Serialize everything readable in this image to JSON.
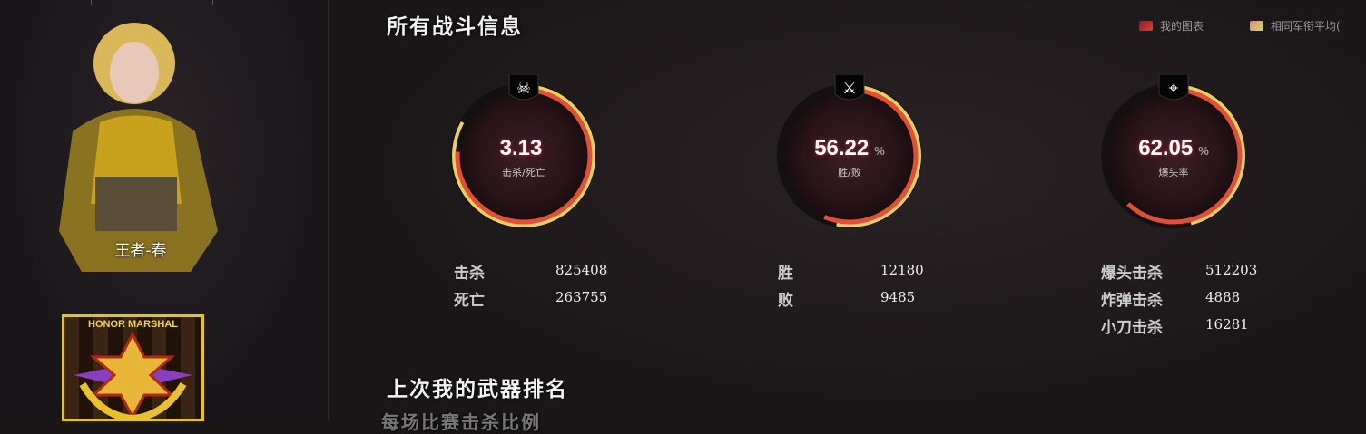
{
  "player": {
    "name": "王者-春",
    "rank_badge": "HONOR MARSHAL"
  },
  "sections": {
    "all_battle_info": "所有战斗信息",
    "last_weapon_rank": "上次我的武器排名",
    "per_match_kill_ratio": "每场比赛击杀比例"
  },
  "legend": [
    {
      "label": "我的图表",
      "color": "#c0283a"
    },
    {
      "label": "相同军衔平均(",
      "color": "#e8d060"
    }
  ],
  "gauges": [
    {
      "icon": "skull-crossbones-icon",
      "value": "3.13",
      "unit": "",
      "label": "击杀/死亡",
      "my_fraction": 0.76,
      "avg_fraction": 0.83
    },
    {
      "icon": "crossed-rifles-icon",
      "value": "56.22",
      "unit": "%",
      "label": "胜/败",
      "my_fraction": 0.5622,
      "avg_fraction": 0.53
    },
    {
      "icon": "sniper-crosshair-icon",
      "value": "62.05",
      "unit": "%",
      "label": "爆头率",
      "my_fraction": 0.6205,
      "avg_fraction": 0.46
    }
  ],
  "stats": [
    [
      {
        "label": "击杀",
        "value": "825408"
      },
      {
        "label": "死亡",
        "value": "263755"
      }
    ],
    [
      {
        "label": "胜",
        "value": "12180"
      },
      {
        "label": "败",
        "value": "9485"
      }
    ],
    [
      {
        "label": "爆头击杀",
        "value": "512203"
      },
      {
        "label": "炸弹击杀",
        "value": "4888"
      },
      {
        "label": "小刀击杀",
        "value": "16281"
      }
    ]
  ]
}
